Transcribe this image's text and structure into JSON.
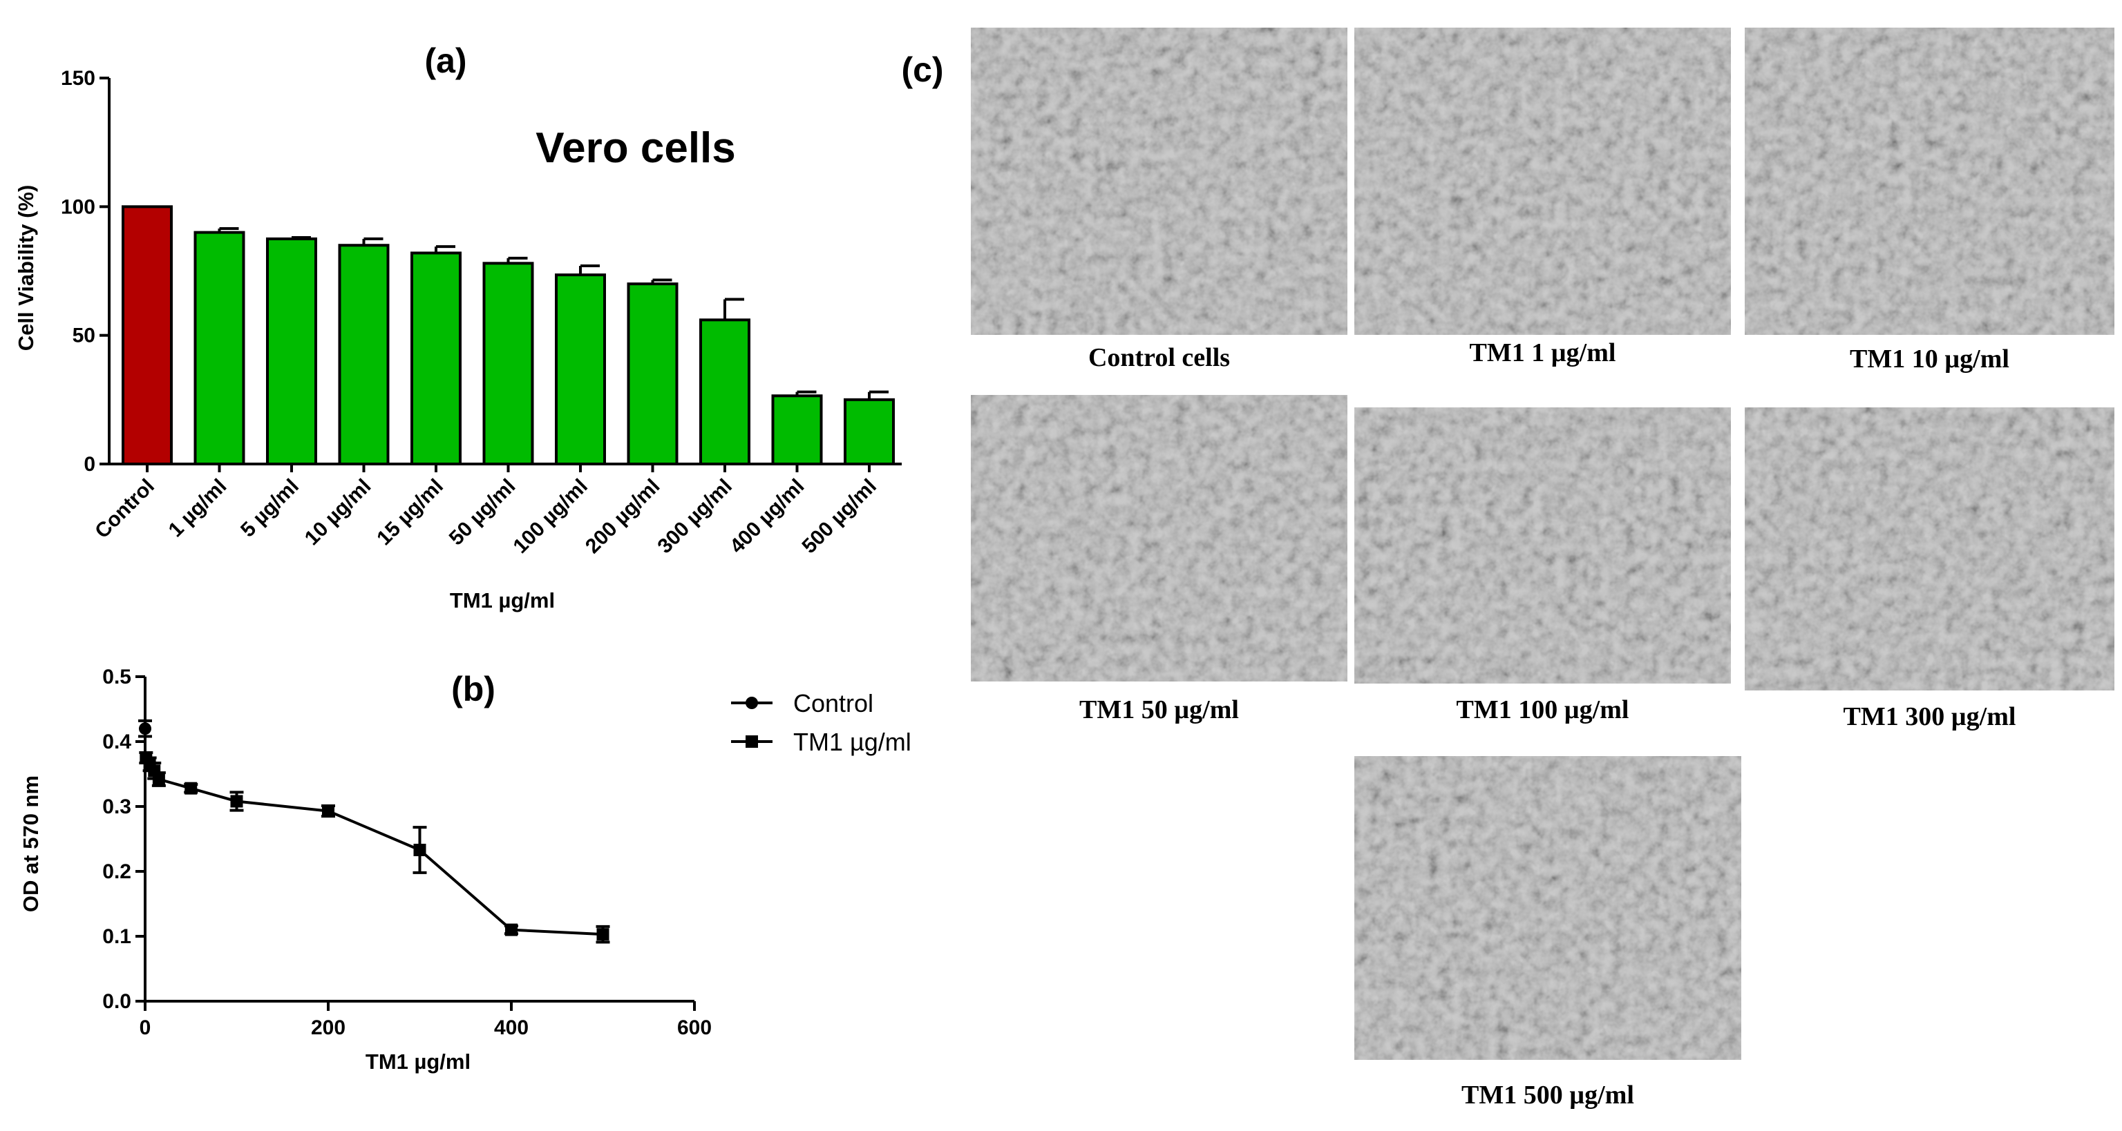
{
  "chart_data": [
    {
      "panel": "(a)",
      "type": "bar",
      "subtitle": "Vero cells",
      "categories": [
        "Control",
        "1 µg/ml",
        "5 µg/ml",
        "10 µg/ml",
        "15 µg/ml",
        "50 µg/ml",
        "100 µg/ml",
        "200 µg/ml",
        "300 µg/ml",
        "400 µg/ml",
        "500 µg/ml"
      ],
      "values": [
        100,
        90,
        87.5,
        85,
        82,
        78,
        73.5,
        70,
        56,
        26.5,
        25
      ],
      "errors": [
        0,
        1.5,
        0.5,
        2.5,
        2.5,
        2,
        3.5,
        1.5,
        8,
        1.5,
        3
      ],
      "colors": [
        "#b30000",
        "#00bb00",
        "#00bb00",
        "#00bb00",
        "#00bb00",
        "#00bb00",
        "#00bb00",
        "#00bb00",
        "#00bb00",
        "#00bb00",
        "#00bb00"
      ],
      "xlabel": "TM1 µg/ml",
      "ylabel": "Cell Viability (%)",
      "ylim": [
        0,
        150
      ],
      "yticks": [
        0,
        50,
        100,
        150
      ]
    },
    {
      "panel": "(b)",
      "type": "line",
      "xlabel": "TM1 µg/ml",
      "ylabel": "OD at 570 nm",
      "xlim": [
        0,
        600
      ],
      "ylim": [
        0,
        0.5
      ],
      "xticks": [
        0,
        200,
        400,
        600
      ],
      "yticks": [
        0.0,
        0.1,
        0.2,
        0.3,
        0.4,
        0.5
      ],
      "legend_position": "right",
      "series": [
        {
          "name": "Control",
          "marker": "circle",
          "x": [
            0
          ],
          "y": [
            0.42
          ],
          "err": [
            0.012
          ]
        },
        {
          "name": "TM1 µg/ml",
          "marker": "square",
          "x": [
            1,
            5,
            10,
            15,
            50,
            100,
            200,
            300,
            400,
            500
          ],
          "y": [
            0.375,
            0.365,
            0.355,
            0.342,
            0.328,
            0.308,
            0.293,
            0.233,
            0.11,
            0.103
          ],
          "err": [
            0.008,
            0.01,
            0.012,
            0.01,
            0.006,
            0.014,
            0.008,
            0.035,
            0.006,
            0.012
          ]
        }
      ]
    }
  ],
  "micrographs": {
    "panel": "(c)",
    "items": [
      {
        "caption": "Control cells"
      },
      {
        "caption": "TM1 1 µg/ml"
      },
      {
        "caption": "TM1 10 µg/ml"
      },
      {
        "caption": "TM1 50 µg/ml"
      },
      {
        "caption": "TM1 100 µg/ml"
      },
      {
        "caption": "TM1 300 µg/ml"
      },
      {
        "caption": "TM1 500 µg/ml"
      }
    ]
  }
}
